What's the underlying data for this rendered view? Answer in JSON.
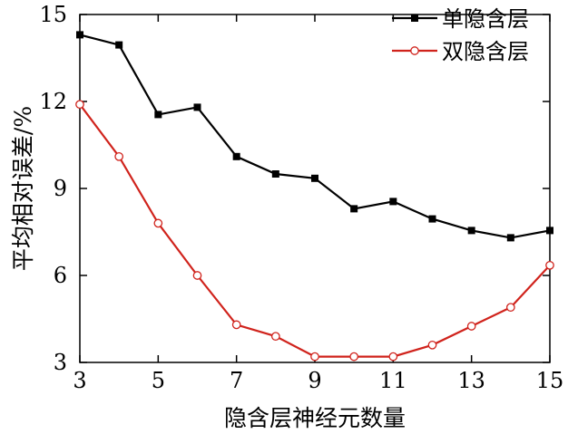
{
  "chart_data": {
    "type": "line",
    "title": "",
    "xlabel": "隐含层神经元数量",
    "ylabel": "平均相对误差/%",
    "xlim": [
      3,
      15
    ],
    "ylim": [
      3,
      15
    ],
    "x_ticks": [
      "3",
      "5",
      "7",
      "9",
      "11",
      "13",
      "15"
    ],
    "y_ticks": [
      "3",
      "6",
      "9",
      "12",
      "15"
    ],
    "x": [
      3,
      4,
      5,
      6,
      7,
      8,
      9,
      10,
      11,
      12,
      13,
      14,
      15
    ],
    "series": [
      {
        "name": "单隐含层",
        "color": "#000000",
        "marker": "filled-square",
        "values": [
          14.3,
          13.95,
          11.55,
          11.8,
          10.1,
          9.5,
          9.35,
          8.3,
          8.55,
          7.95,
          7.55,
          7.3,
          7.55
        ]
      },
      {
        "name": "双隐含层",
        "color": "#d0231c",
        "marker": "open-circle",
        "values": [
          11.9,
          10.1,
          7.8,
          6.0,
          4.3,
          3.9,
          3.2,
          3.2,
          3.2,
          3.6,
          4.25,
          4.9,
          6.35
        ]
      }
    ],
    "legend_position": "top-right",
    "grid": false
  }
}
